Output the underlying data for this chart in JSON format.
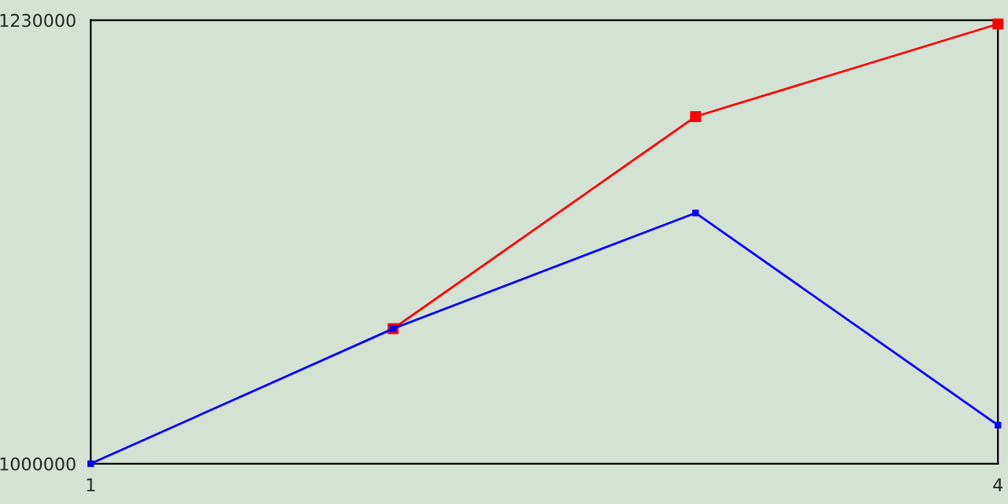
{
  "chart_data": {
    "type": "line",
    "x": [
      1,
      2,
      3,
      4
    ],
    "series": [
      {
        "color": "#ff0000",
        "values": [
          null,
          1070000,
          1180000,
          1228000
        ]
      },
      {
        "color": "#0000ff",
        "values": [
          1000000,
          1070000,
          1130000,
          1020000
        ]
      }
    ],
    "xlim": [
      1,
      4
    ],
    "xticks": [
      1,
      4
    ],
    "ylim": [
      1000000,
      1230000
    ],
    "yticks": [
      1000000,
      1230000
    ],
    "legend": false,
    "marker": "square",
    "line_style": "solid"
  }
}
